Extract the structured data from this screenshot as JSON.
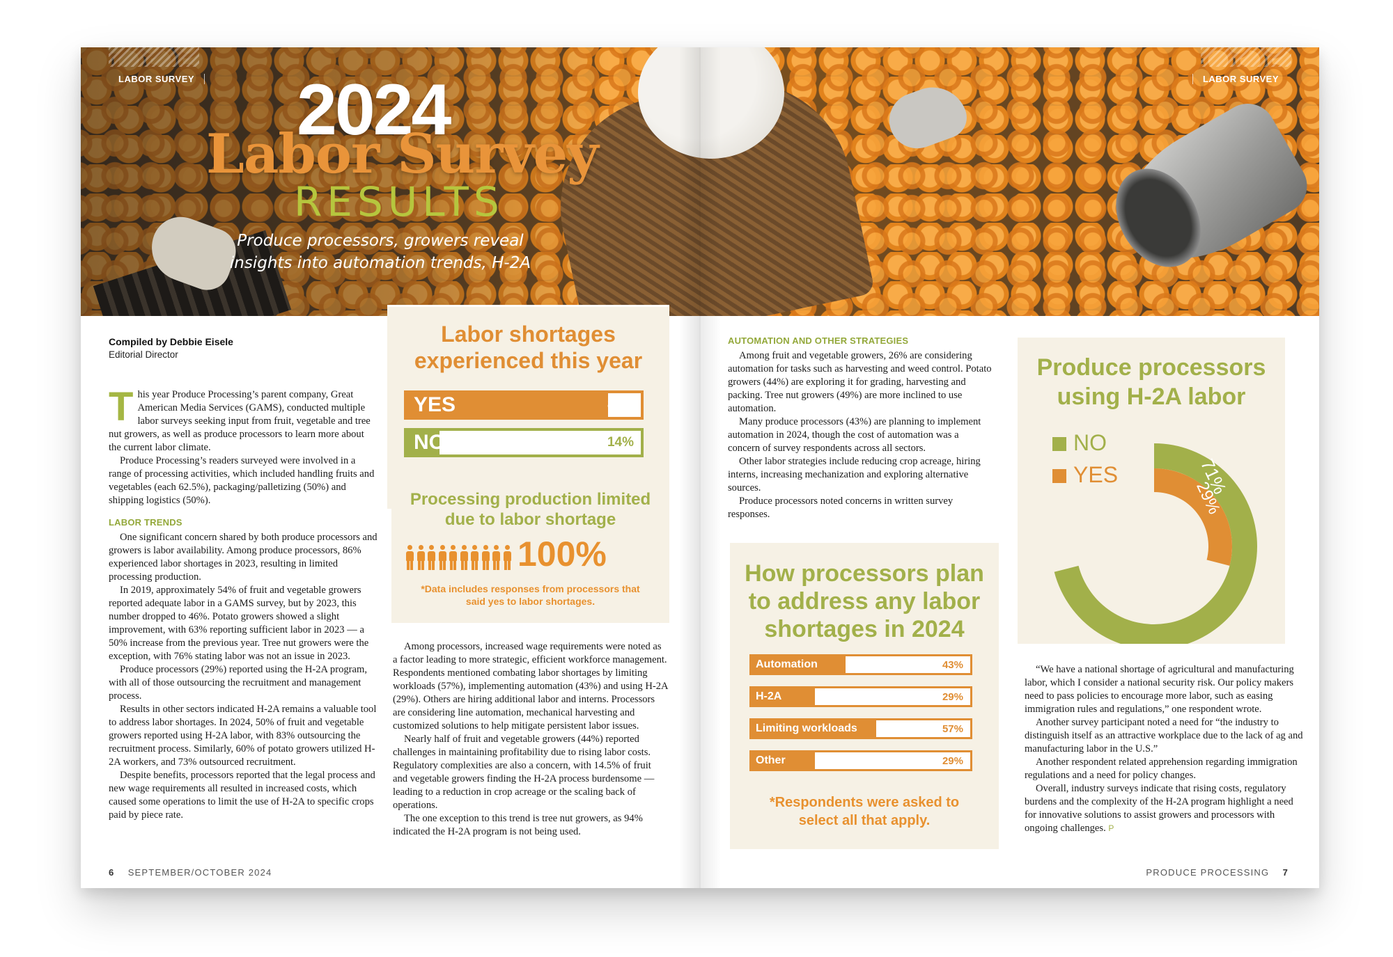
{
  "header": {
    "section_tag_left": "LABOR SURVEY",
    "section_tag_right": "LABOR SURVEY",
    "title_year": "2024",
    "title_main": "Labor Survey",
    "title_results": "RESULTS",
    "deck_line1": "Produce processors, growers reveal",
    "deck_line2": "insights into automation trends, H-2A"
  },
  "byline": {
    "name": "Compiled by Debbie Eisele",
    "role": "Editorial Director"
  },
  "article_left": {
    "dropcap": "T",
    "p1": "his year Produce Processing’s parent company, Great American Media Services (GAMS), conducted multiple labor surveys seeking input from fruit, vegetable and tree nut growers, as well as produce processors to learn more about the current labor climate.",
    "p2": "Produce Processing’s readers surveyed were involved in a range of processing activities, which included handling fruits and vegetables (each 62.5%), packaging/palletizing (50%) and shipping logistics (50%).",
    "h_trends": "LABOR TRENDS",
    "p3": "One significant concern shared by both produce processors and growers is labor availability. Among produce processors, 86% experienced labor shortages in 2023, resulting in limited processing production.",
    "p4": "In 2019, approximately 54% of fruit and vegetable growers reported adequate labor in a GAMS survey, but by 2023, this number dropped to 46%. Potato growers showed a slight improvement, with 63% reporting sufficient labor in 2023 — a 50% increase from the previous year. Tree nut growers were the exception, with 76% stating labor was not an issue in 2023.",
    "p5": "Produce processors (29%) reported using the H-2A program, with all of those outsourcing the recruitment and management process.",
    "p6": "Results in other sectors indicated H-2A remains a valuable tool to address labor shortages. In 2024, 50% of fruit and vegetable growers reported using H-2A labor, with 83% outsourcing the recruitment process. Similarly, 60% of potato growers utilized H-2A workers, and 73% outsourced recruitment.",
    "p7": "Despite benefits, processors reported that the legal process and new wage requirements all resulted in increased costs, which caused some operations to limit the use of H-2A to specific crops paid by piece rate."
  },
  "article_mid": {
    "p1": "Among processors, increased wage requirements were noted as a factor leading to more strategic, efficient workforce management. Respondents mentioned combating labor shortages by limiting workloads (57%), implementing automation (43%) and using H-2A (29%). Others are hiring additional labor and interns. Processors are considering line automation, mechanical harvesting and customized solutions to help mitigate persistent labor issues.",
    "p2": "Nearly half of fruit and vegetable growers (44%) reported challenges in maintaining profitability due to rising labor costs. Regulatory complexities are also a concern, with 14.5% of fruit and vegetable growers finding the H-2A process burdensome — leading to a reduction in crop acreage or the scaling back of operations.",
    "p3": "The one exception to this trend is tree nut growers, as 94% indicated the H-2A program is not being used."
  },
  "article_right1": {
    "h_auto": "AUTOMATION AND OTHER STRATEGIES",
    "p1": "Among fruit and vegetable growers, 26% are considering automation for tasks such as harvesting and weed control. Potato growers (44%) are exploring it for grading, harvesting and packing. Tree nut growers (49%) are more inclined to use automation.",
    "p2": "Many produce processors (43%) are planning to implement automation in 2024, though the cost of automation was a concern of survey respondents across all sectors.",
    "p3": "Other labor strategies include reducing crop acreage, hiring interns, increasing mechanization and exploring alternative sources.",
    "p4": "Produce processors noted concerns in written survey responses."
  },
  "article_right2": {
    "p1": "“We have a national shortage of agricultural and manufacturing labor, which I consider a national security risk. Our policy makers need to pass policies to encourage more labor, such as easing immigration rules and regulations,” one respondent wrote.",
    "p2": "Another survey participant noted a need for “the industry to distinguish itself as an attractive workplace due to the lack of ag and manufacturing labor in the U.S.”",
    "p3": "Another respondent related apprehension regarding immigration regulations and a need for policy changes.",
    "p4": "Overall, industry surveys indicate that rising costs, regulatory burdens and the complexity of the H-2A program highlight a need for innovative solutions to assist growers and processors with ongoing challenges.",
    "end_mark": "P"
  },
  "panel_shortages": {
    "title_line1": "Labor shortages",
    "title_line2": "experienced this year",
    "bars": [
      {
        "label": "YES",
        "value_text": "86%",
        "value": 86
      },
      {
        "label": "NO",
        "value_text": "14%",
        "value": 14
      }
    ]
  },
  "panel_production": {
    "title_line1": "Processing production limited",
    "title_line2": "due to labor shortage",
    "figure_count": 10,
    "value_text": "100%",
    "note_line1": "*Data includes responses from processors that",
    "note_line2": "said yes to labor shortages."
  },
  "panel_plans": {
    "title_line1": "How processors plan",
    "title_line2": "to address any labor",
    "title_line3": "shortages in 2024",
    "bars": [
      {
        "label": "Automation",
        "value_text": "43%",
        "value": 43
      },
      {
        "label": "H-2A",
        "value_text": "29%",
        "value": 29
      },
      {
        "label": "Limiting workloads",
        "value_text": "57%",
        "value": 57
      },
      {
        "label": "Other",
        "value_text": "29%",
        "value": 29
      }
    ],
    "note_line1": "*Respondents were asked to",
    "note_line2": "select all that apply."
  },
  "panel_h2a": {
    "title_line1": "Produce processors",
    "title_line2": "using H-2A labor",
    "legend": [
      {
        "label": "NO",
        "color": "#a2b04a"
      },
      {
        "label": "YES",
        "color": "#e08e34"
      }
    ]
  },
  "chart_data": [
    {
      "type": "bar",
      "title": "Labor shortages experienced this year",
      "categories": [
        "YES",
        "NO"
      ],
      "values": [
        86,
        14
      ],
      "unit": "%"
    },
    {
      "type": "bar",
      "title": "Processing production limited due to labor shortage",
      "categories": [
        ""
      ],
      "values": [
        100
      ],
      "unit": "%"
    },
    {
      "type": "bar",
      "title": "How processors plan to address any labor shortages in 2024",
      "categories": [
        "Automation",
        "H-2A",
        "Limiting workloads",
        "Other"
      ],
      "values": [
        43,
        29,
        57,
        29
      ],
      "unit": "%"
    },
    {
      "type": "pie",
      "title": "Produce processors using H-2A labor",
      "categories": [
        "NO",
        "YES"
      ],
      "values": [
        71,
        29
      ],
      "value_labels": [
        "71%",
        "29%"
      ],
      "colors": [
        "#a2b04a",
        "#e08e34"
      ],
      "legend": "top-left"
    }
  ],
  "footer": {
    "left_page_num": "6",
    "left_issue": "SEPTEMBER/OCTOBER 2024",
    "right_pub": "PRODUCE PROCESSING",
    "right_page_num": "7"
  },
  "colors": {
    "orange": "#e8912f",
    "green": "#a2b04a",
    "panel_bg": "#f6f1e5"
  }
}
